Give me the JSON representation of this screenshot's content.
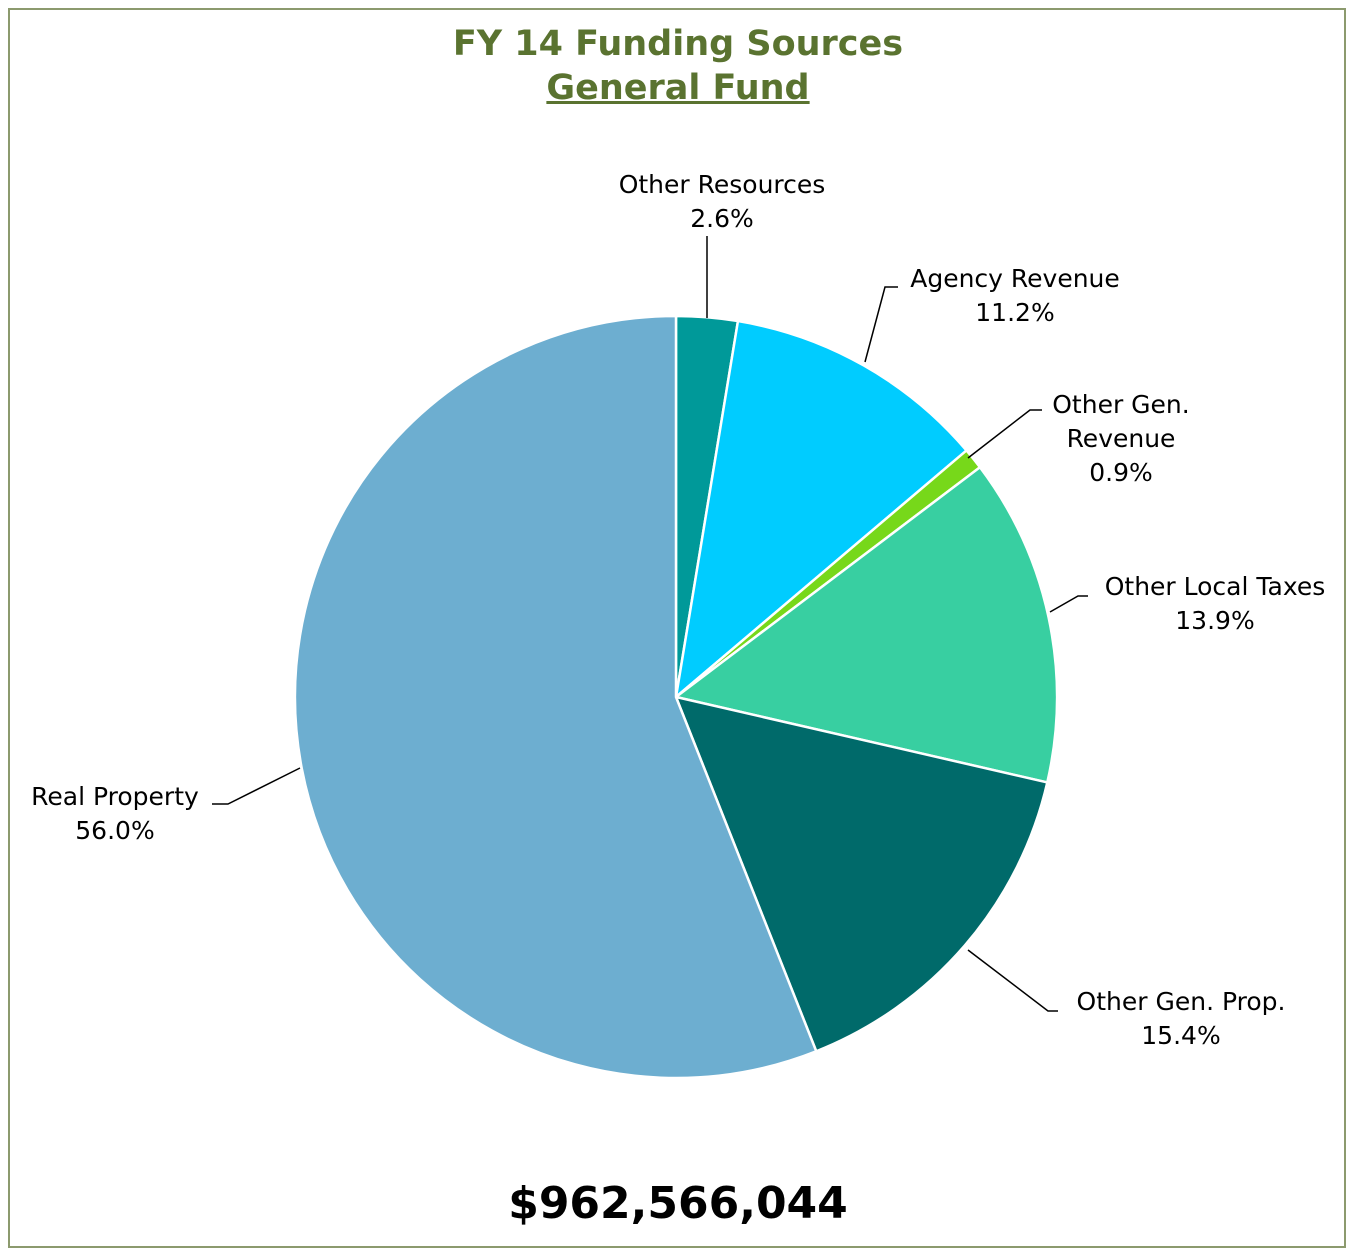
{
  "chart_data": {
    "type": "pie",
    "title": "FY 14 Funding Sources",
    "subtitle": "General Fund",
    "categories": [
      "Other Resources",
      "Agency Revenue",
      "Other Gen. Revenue",
      "Other Local Taxes",
      "Other Gen. Prop.",
      "Real Property"
    ],
    "values": [
      2.6,
      11.2,
      0.9,
      13.9,
      15.4,
      56.0
    ],
    "value_labels": [
      "2.6%",
      "11.2%",
      "0.9%",
      "13.9%",
      "15.4%",
      "56.0%"
    ],
    "colors": [
      "#009999",
      "#00ccff",
      "#77d81a",
      "#38cfa1",
      "#006a6a",
      "#6daed0"
    ],
    "annotation": "$962,566,044"
  }
}
